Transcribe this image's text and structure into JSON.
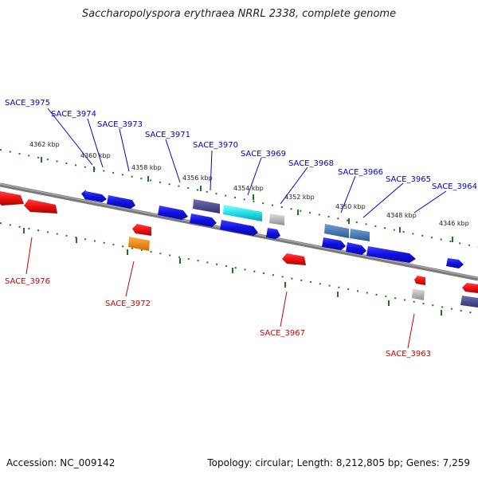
{
  "title": "Saccharopolyspora erythraea NRRL 2338, complete genome",
  "footer": {
    "accession": "Accession: NC_009142",
    "summary": "Topology: circular; Length: 8,212,805 bp; Genes: 7,259"
  },
  "ticks": {
    "t4362": "4362 kbp",
    "t4360": "4360 kbp",
    "t4358": "4358 kbp",
    "t4356": "4356 kbp",
    "t4354": "4354 kbp",
    "t4352": "4352 kbp",
    "t4350": "4350 kbp",
    "t4348": "4348 kbp",
    "t4346": "4346 kbp"
  },
  "genes_top": {
    "g3975": "SACE_3975",
    "g3974": "SACE_3974",
    "g3973": "SACE_3973",
    "g3971": "SACE_3971",
    "g3970": "SACE_3970",
    "g3969": "SACE_3969",
    "g3968": "SACE_3968",
    "g3966": "SACE_3966",
    "g3965": "SACE_3965",
    "g3964": "SACE_3964"
  },
  "genes_bottom": {
    "g3976": "SACE_3976",
    "g3972": "SACE_3972",
    "g3967": "SACE_3967",
    "g3963": "SACE_3963"
  },
  "colors": {
    "forward": "#1010e0",
    "reverse": "#ee1010",
    "backbone": "#7a7a7a",
    "tick": "#1a7a1a",
    "cyan": "#22e0e8",
    "orange": "#f08a10",
    "slate": "#4a4a90",
    "steel": "#4a7ab0",
    "grey": "#b0b0b0"
  }
}
